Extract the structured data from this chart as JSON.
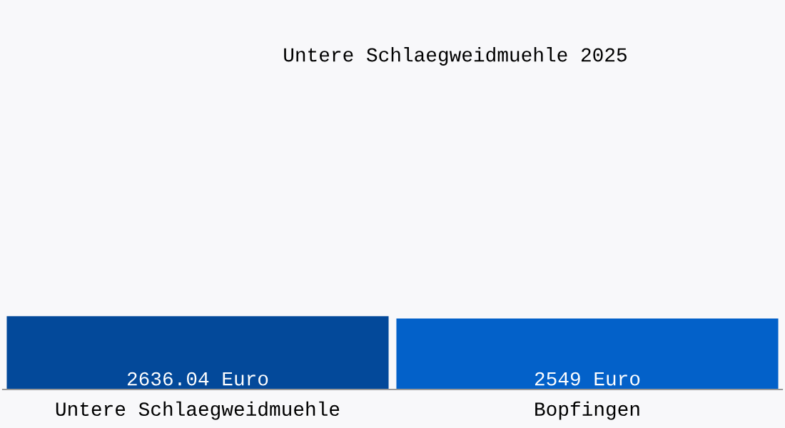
{
  "chart_data": {
    "type": "bar",
    "title": "Untere Schlaegweidmuehle 2025",
    "categories": [
      "Untere Schlaegweidmuehle",
      "Bopfingen"
    ],
    "values": [
      2636.04,
      2549
    ],
    "colors": [
      "#03499a",
      "#0361c9"
    ],
    "value_labels": [
      "2636.04 Euro",
      "2549 Euro"
    ],
    "tick_labels": "x",
    "grid": false,
    "legend": false
  }
}
